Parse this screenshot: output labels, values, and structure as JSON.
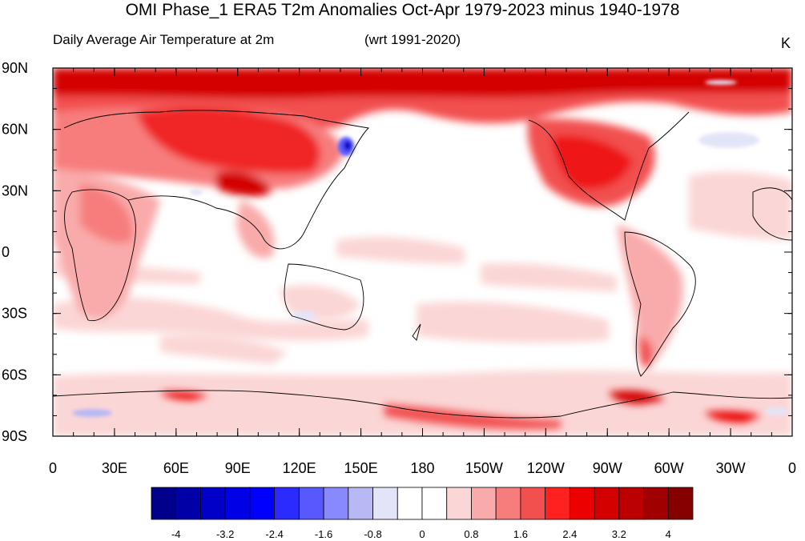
{
  "title": "OMI Phase_1 ERA5 T2m Anomalies Oct-Apr 1979-2023 minus 1940-1978",
  "subtitle_left": "Daily Average Air Temperature at 2m",
  "subtitle_mid": "(wrt 1991-2020)",
  "units": "K",
  "lat_labels": [
    "90N",
    "60N",
    "30N",
    "0",
    "30S",
    "60S",
    "90S"
  ],
  "lon_labels": [
    "0",
    "30E",
    "60E",
    "90E",
    "120E",
    "150E",
    "180",
    "150W",
    "120W",
    "90W",
    "60W",
    "30W",
    "0"
  ],
  "colorbar": {
    "colors": [
      "#00008b",
      "#0000a8",
      "#0000c8",
      "#0000e6",
      "#0000ff",
      "#2b2bff",
      "#5858ff",
      "#8888ff",
      "#b8b8f5",
      "#e4e4f8",
      "#ffffff",
      "#ffffff",
      "#fbd6d6",
      "#f9aaaa",
      "#f77d7d",
      "#f24f4f",
      "#ff2020",
      "#ec0000",
      "#d40000",
      "#bc0000",
      "#a00000",
      "#860000"
    ],
    "labels": [
      "-4",
      "-3.2",
      "-2.4",
      "-1.6",
      "-0.8",
      "0",
      "0.8",
      "1.6",
      "2.4",
      "3.2",
      "4"
    ]
  }
}
